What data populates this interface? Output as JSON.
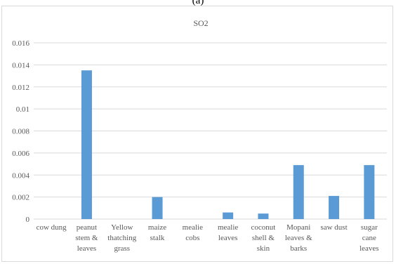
{
  "caption": "(a)",
  "chart_data": {
    "type": "bar",
    "title": "SO2",
    "categories": [
      "cow dung",
      "peanut stem & leaves",
      "Yellow thatching grass",
      "maize stalk",
      "mealie cobs",
      "mealie leaves",
      "coconut shell & skin",
      "Mopani leaves & barks",
      "saw dust",
      "sugar cane leaves"
    ],
    "category_lines": [
      [
        "cow dung"
      ],
      [
        "peanut",
        "stem &",
        "leaves"
      ],
      [
        "Yellow",
        "thatching",
        "grass"
      ],
      [
        "maize",
        "stalk"
      ],
      [
        "mealie",
        "cobs"
      ],
      [
        "mealie",
        "leaves"
      ],
      [
        "coconut",
        "shell &",
        "skin"
      ],
      [
        "Mopani",
        "leaves &",
        "barks"
      ],
      [
        "saw dust"
      ],
      [
        "sugar",
        "cane",
        "leaves"
      ]
    ],
    "values": [
      0,
      0.0135,
      0,
      0.002,
      0,
      0.0006,
      0.0005,
      0.0049,
      0.0021,
      0.0049
    ],
    "ylim": [
      0,
      0.016
    ],
    "yticks": [
      "0",
      "0.002",
      "0.004",
      "0.006",
      "0.008",
      "0.01",
      "0.012",
      "0.014",
      "0.016"
    ],
    "ytick_values": [
      0,
      0.002,
      0.004,
      0.006,
      0.008,
      0.01,
      0.012,
      0.014,
      0.016
    ],
    "bar_color": "#5b9bd5",
    "grid_color": "#d9d9d9",
    "grid": true
  }
}
